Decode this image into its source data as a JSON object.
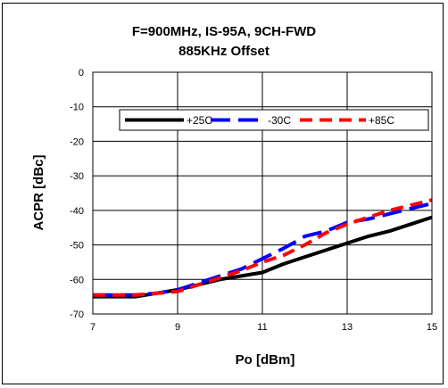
{
  "chart_data": {
    "type": "line",
    "title": "F=900MHz, IS-95A, 9CH-FWD",
    "subtitle": "885KHz Offset",
    "xlabel": "Po [dBm]",
    "ylabel": "ACPR [dBc]",
    "xlim": [
      7,
      15
    ],
    "ylim": [
      -70,
      0
    ],
    "xticks": [
      "7",
      "9",
      "11",
      "13",
      "15"
    ],
    "yticks": [
      "0",
      "-10",
      "-20",
      "-30",
      "-40",
      "-50",
      "-60",
      "-70"
    ],
    "grid": true,
    "legend_position": "top",
    "series": [
      {
        "name": "+25C",
        "color": "#000000",
        "dash": "solid",
        "x": [
          7,
          7.5,
          8,
          8.5,
          9,
          9.5,
          10,
          10.5,
          11,
          11.5,
          12,
          12.5,
          13,
          13.5,
          14,
          14.5,
          15
        ],
        "y": [
          -65,
          -65,
          -65,
          -64,
          -63,
          -61.5,
          -60,
          -59,
          -58,
          -55.5,
          -53.5,
          -51.5,
          -49.5,
          -47.5,
          -46,
          -44,
          -42
        ]
      },
      {
        "name": "-30C",
        "color": "#0000ff",
        "dash": "long",
        "x": [
          7,
          7.5,
          8,
          8.5,
          9,
          9.5,
          10,
          10.5,
          11,
          11.5,
          11.8,
          12,
          12.5,
          13,
          13.5,
          14,
          14.5,
          15
        ],
        "y": [
          -64.5,
          -64.5,
          -64.5,
          -64,
          -63,
          -61,
          -59,
          -57,
          -54,
          -51,
          -49,
          -47.5,
          -46,
          -43.5,
          -42.5,
          -41,
          -39.5,
          -38
        ]
      },
      {
        "name": "+85C",
        "color": "#ff0000",
        "dash": "short",
        "x": [
          7,
          7.5,
          8,
          8.5,
          9,
          9.5,
          10,
          10.5,
          11,
          11.5,
          12,
          12.5,
          13,
          13.5,
          14,
          14.5,
          15
        ],
        "y": [
          -64.5,
          -64.5,
          -64.5,
          -64,
          -63.5,
          -61.5,
          -59.5,
          -57.5,
          -55,
          -53,
          -50,
          -46.5,
          -44,
          -42,
          -40,
          -38.5,
          -37
        ]
      }
    ]
  }
}
